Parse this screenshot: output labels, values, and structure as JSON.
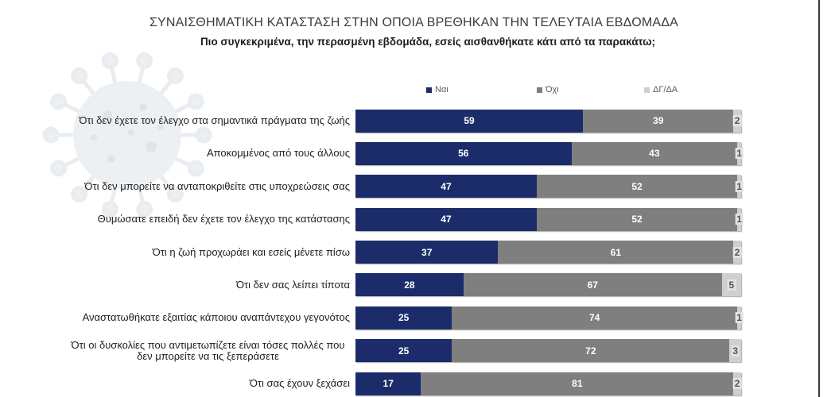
{
  "decoration": {
    "background_icon": "coronavirus-icon"
  },
  "chart_data": {
    "type": "bar",
    "orientation": "horizontal",
    "stacked": true,
    "title": "ΣΥΝΑΙΣΘΗΜΑΤΙΚΗ ΚΑΤΑΣΤΑΣΗ ΣΤΗΝ ΟΠΟΙΑ ΒΡΕΘΗΚΑΝ ΤΗΝ ΤΕΛΕΥΤΑΙΑ ΕΒΔΟΜΑΔΑ",
    "subtitle": "Πιο συγκεκριμένα, την περασμένη εβδομάδα, εσείς αισθανθήκατε κάτι από τα παρακάτω;",
    "xlim": [
      0,
      100
    ],
    "grid": false,
    "legend_position": "top",
    "data_labels": true,
    "categories": [
      "Ότι δεν έχετε τον έλεγχο στα σημαντικά πράγματα της ζωής",
      "Αποκομμένος από τους άλλους",
      "Ότι δεν μπορείτε να ανταποκριθείτε στις υποχρεώσεις σας",
      "Θυμώσατε επειδή δεν έχετε τον έλεγχο της κατάστασης",
      "Ότι η ζωή προχωράει και εσείς μένετε πίσω",
      "Ότι δεν σας λείπει τίποτα",
      "Αναστατωθήκατε εξαιτίας κάποιου αναπάντεχου γεγονότος",
      "Ότι οι δυσκολίες που αντιμετωπίζετε είναι τόσες πολλές που δεν μπορείτε να τις ξεπεράσετε",
      "Ότι σας έχουν ξεχάσει"
    ],
    "series": [
      {
        "name": "Ναι",
        "color": "#1c2c6a",
        "values": [
          59,
          56,
          47,
          47,
          37,
          28,
          25,
          25,
          17
        ]
      },
      {
        "name": "Όχι",
        "color": "#7f7f7f",
        "values": [
          39,
          43,
          52,
          52,
          61,
          67,
          74,
          72,
          81
        ]
      },
      {
        "name": "ΔΓ/ΔΑ",
        "color": "#cfcfcf",
        "values": [
          2,
          1,
          1,
          1,
          2,
          5,
          1,
          3,
          2
        ]
      }
    ]
  }
}
